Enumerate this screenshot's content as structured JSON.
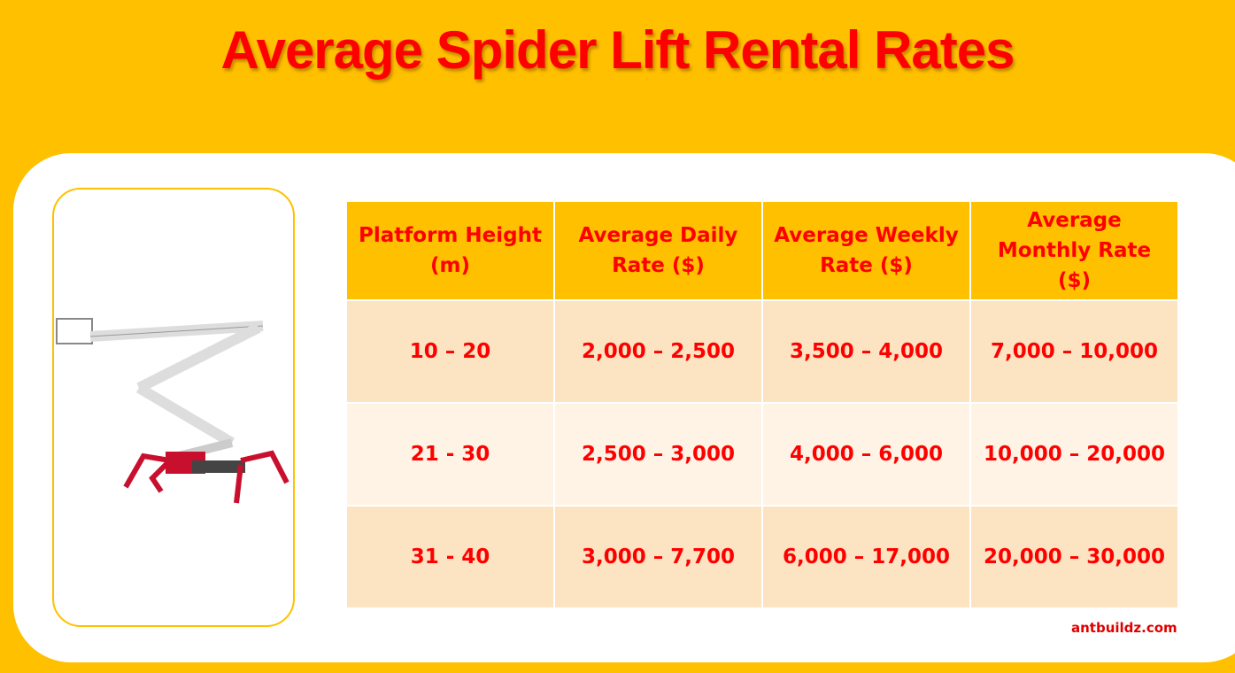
{
  "header": {
    "title": "Average Spider Lift Rental Rates"
  },
  "table": {
    "columns": [
      "Platform Height (m)",
      "Average Daily Rate ($)",
      "Average Weekly Rate ($)",
      "Average Monthly Rate ($)"
    ],
    "rows": [
      [
        "10 – 20",
        "2,000 – 2,500",
        "3,500 – 4,000",
        "7,000 – 10,000"
      ],
      [
        "21 - 30",
        "2,500 – 3,000",
        "4,000 – 6,000",
        "10,000 – 20,000"
      ],
      [
        "31 - 40",
        "3,000 – 7,700",
        "6,000 – 17,000",
        "20,000 – 30,000"
      ]
    ]
  },
  "footer": {
    "brand": "antbuildz.com"
  }
}
